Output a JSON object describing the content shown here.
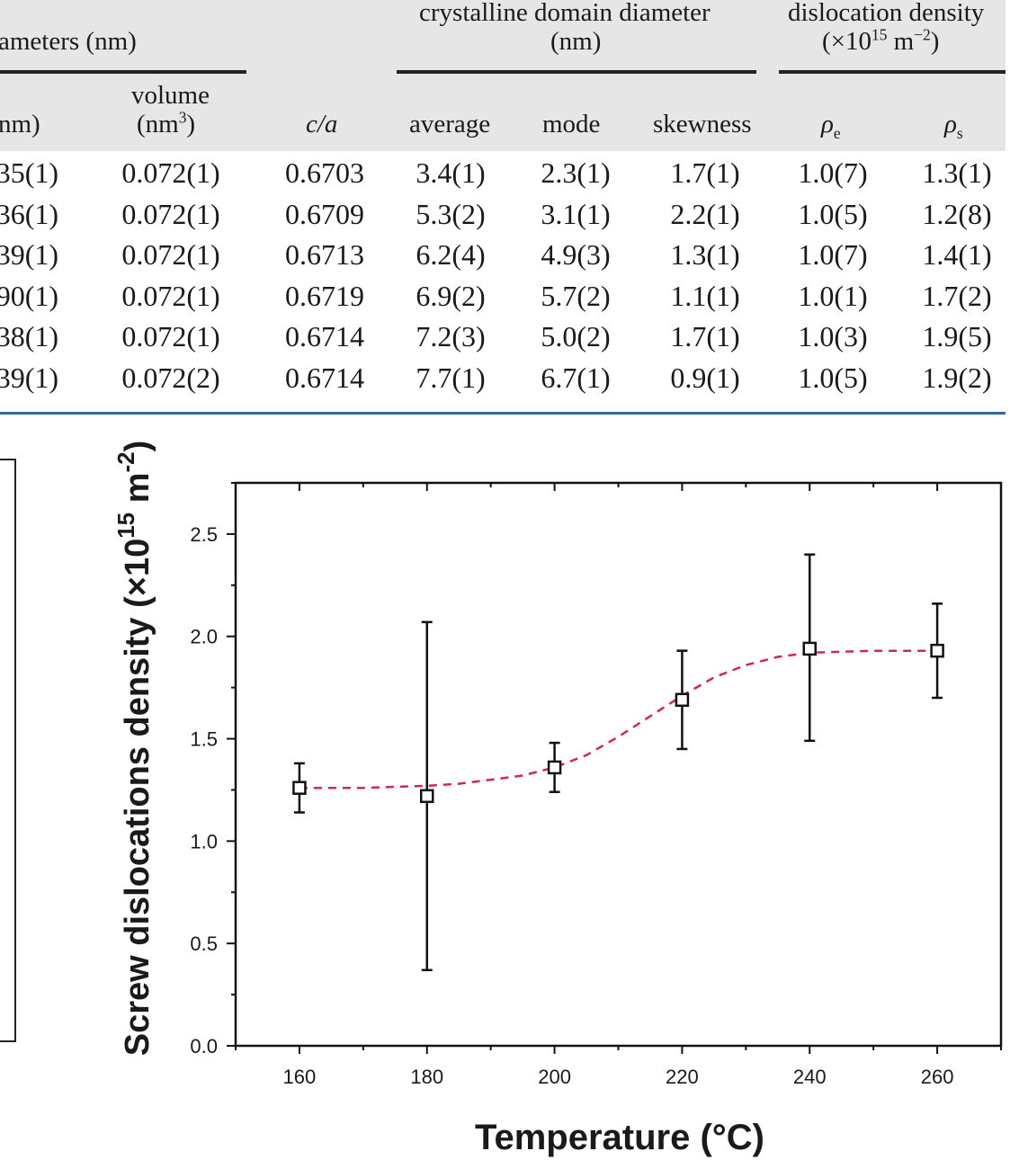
{
  "table": {
    "group_headers": {
      "diameters": "ameters (nm)",
      "crystalline_line1": "crystalline domain diameter",
      "crystalline_line2": "(nm)",
      "dislocation_line1": "dislocation density",
      "dislocation_line2_prefix": "(×10",
      "dislocation_line2_exp": "15",
      "dislocation_line2_unit": " m",
      "dislocation_line2_unit_exp": "−2",
      "dislocation_line2_suffix": ")"
    },
    "column_headers": {
      "nm": "nm)",
      "volume_line1": "volume",
      "volume_line2": "(nm",
      "volume_line2_exp": "3",
      "volume_line2_suffix": ")",
      "ca": "c/a",
      "average": "average",
      "mode": "mode",
      "skewness": "skewness",
      "rho_e": "ρ",
      "rho_e_sub": "e",
      "rho_s": "ρ",
      "rho_s_sub": "s"
    },
    "rows": [
      [
        "35(1)",
        "0.072(1)",
        "0.6703",
        "3.4(1)",
        "2.3(1)",
        "1.7(1)",
        "1.0(7)",
        "1.3(1)"
      ],
      [
        "36(1)",
        "0.072(1)",
        "0.6709",
        "5.3(2)",
        "3.1(1)",
        "2.2(1)",
        "1.0(5)",
        "1.2(8)"
      ],
      [
        "39(1)",
        "0.072(1)",
        "0.6713",
        "6.2(4)",
        "4.9(3)",
        "1.3(1)",
        "1.0(7)",
        "1.4(1)"
      ],
      [
        "90(1)",
        "0.072(1)",
        "0.6719",
        "6.9(2)",
        "5.7(2)",
        "1.1(1)",
        "1.0(1)",
        "1.7(2)"
      ],
      [
        "38(1)",
        "0.072(1)",
        "0.6714",
        "7.2(3)",
        "5.0(2)",
        "1.7(1)",
        "1.0(3)",
        "1.9(5)"
      ],
      [
        "39(1)",
        "0.072(2)",
        "0.6714",
        "7.7(1)",
        "6.7(1)",
        "0.9(1)",
        "1.0(5)",
        "1.9(2)"
      ]
    ]
  },
  "chart_data": {
    "type": "scatter",
    "xlabel": "Temperature (°C)",
    "ylabel_prefix": "Screw dislocations density (×10",
    "ylabel_exp1": "15",
    "ylabel_mid": " m",
    "ylabel_exp2": "-2",
    "ylabel_suffix": ")",
    "xlim": [
      150,
      270
    ],
    "ylim": [
      0,
      2.75
    ],
    "xticks": [
      160,
      180,
      200,
      220,
      240,
      260
    ],
    "yticks": [
      0.0,
      0.5,
      1.0,
      1.5,
      2.0,
      2.5
    ],
    "ytick_labels": [
      "0.0",
      "0.5",
      "1.0",
      "1.5",
      "2.0",
      "2.5"
    ],
    "points": [
      {
        "x": 160,
        "y": 1.26,
        "err_low": 1.14,
        "err_high": 1.38
      },
      {
        "x": 180,
        "y": 1.22,
        "err_low": 0.37,
        "err_high": 2.07
      },
      {
        "x": 200,
        "y": 1.36,
        "err_low": 1.24,
        "err_high": 1.48
      },
      {
        "x": 220,
        "y": 1.69,
        "err_low": 1.45,
        "err_high": 1.93
      },
      {
        "x": 240,
        "y": 1.94,
        "err_low": 1.49,
        "err_high": 2.4
      },
      {
        "x": 260,
        "y": 1.93,
        "err_low": 1.7,
        "err_high": 2.16
      }
    ],
    "fit_curve": {
      "style": "dashed",
      "color": "#d0284e",
      "x": [
        160,
        165,
        170,
        175,
        180,
        185,
        190,
        195,
        200,
        205,
        210,
        215,
        220,
        225,
        230,
        235,
        240,
        245,
        250,
        255,
        260
      ],
      "y": [
        1.26,
        1.26,
        1.26,
        1.265,
        1.27,
        1.28,
        1.3,
        1.32,
        1.36,
        1.42,
        1.51,
        1.61,
        1.71,
        1.8,
        1.86,
        1.9,
        1.92,
        1.925,
        1.93,
        1.93,
        1.93
      ]
    },
    "marker": "open-square",
    "grid": false
  }
}
